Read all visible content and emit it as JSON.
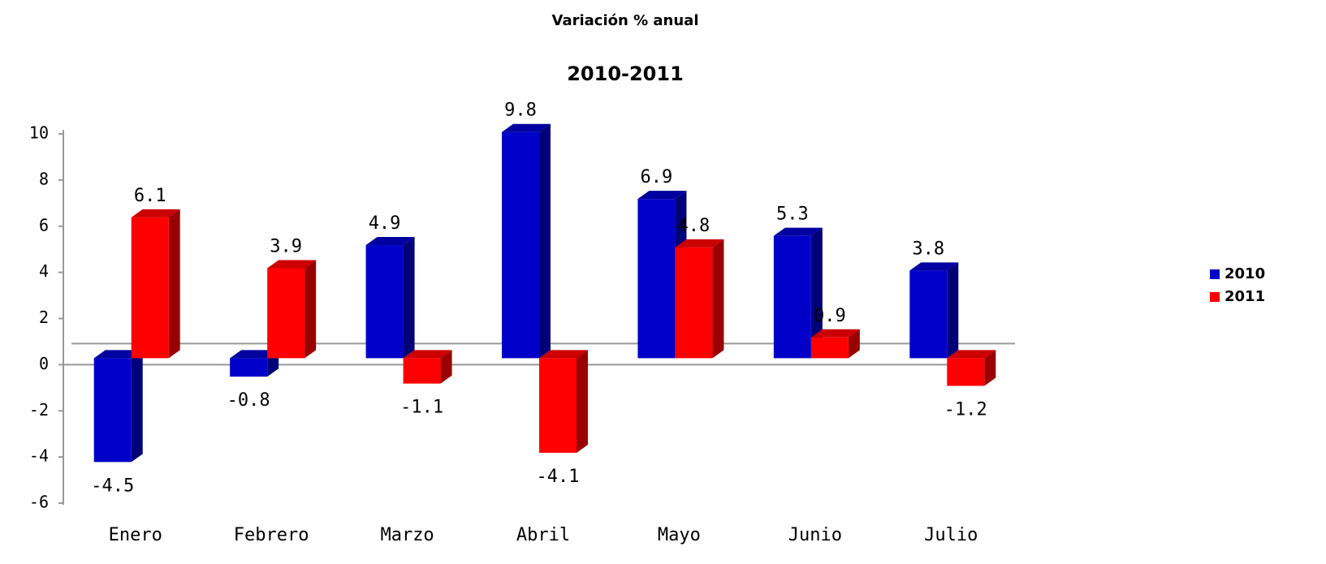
{
  "chart_data": {
    "type": "bar3d",
    "title": "Variación % anual",
    "subtitle": "2010-2011",
    "categories": [
      "Enero",
      "Febrero",
      "Marzo",
      "Abril",
      "Mayo",
      "Junio",
      "Julio"
    ],
    "series": [
      {
        "name": "2010",
        "color": "#0000c8",
        "values": [
          -4.5,
          -0.8,
          4.9,
          9.8,
          6.9,
          5.3,
          3.8
        ]
      },
      {
        "name": "2011",
        "color": "#ff0000",
        "values": [
          6.1,
          3.9,
          -1.1,
          -4.1,
          4.8,
          0.9,
          -1.2
        ]
      }
    ],
    "ylim": [
      -6,
      10
    ],
    "yticks": [
      -6,
      -4,
      -2,
      0,
      2,
      4,
      6,
      8,
      10
    ],
    "legend": "right"
  }
}
